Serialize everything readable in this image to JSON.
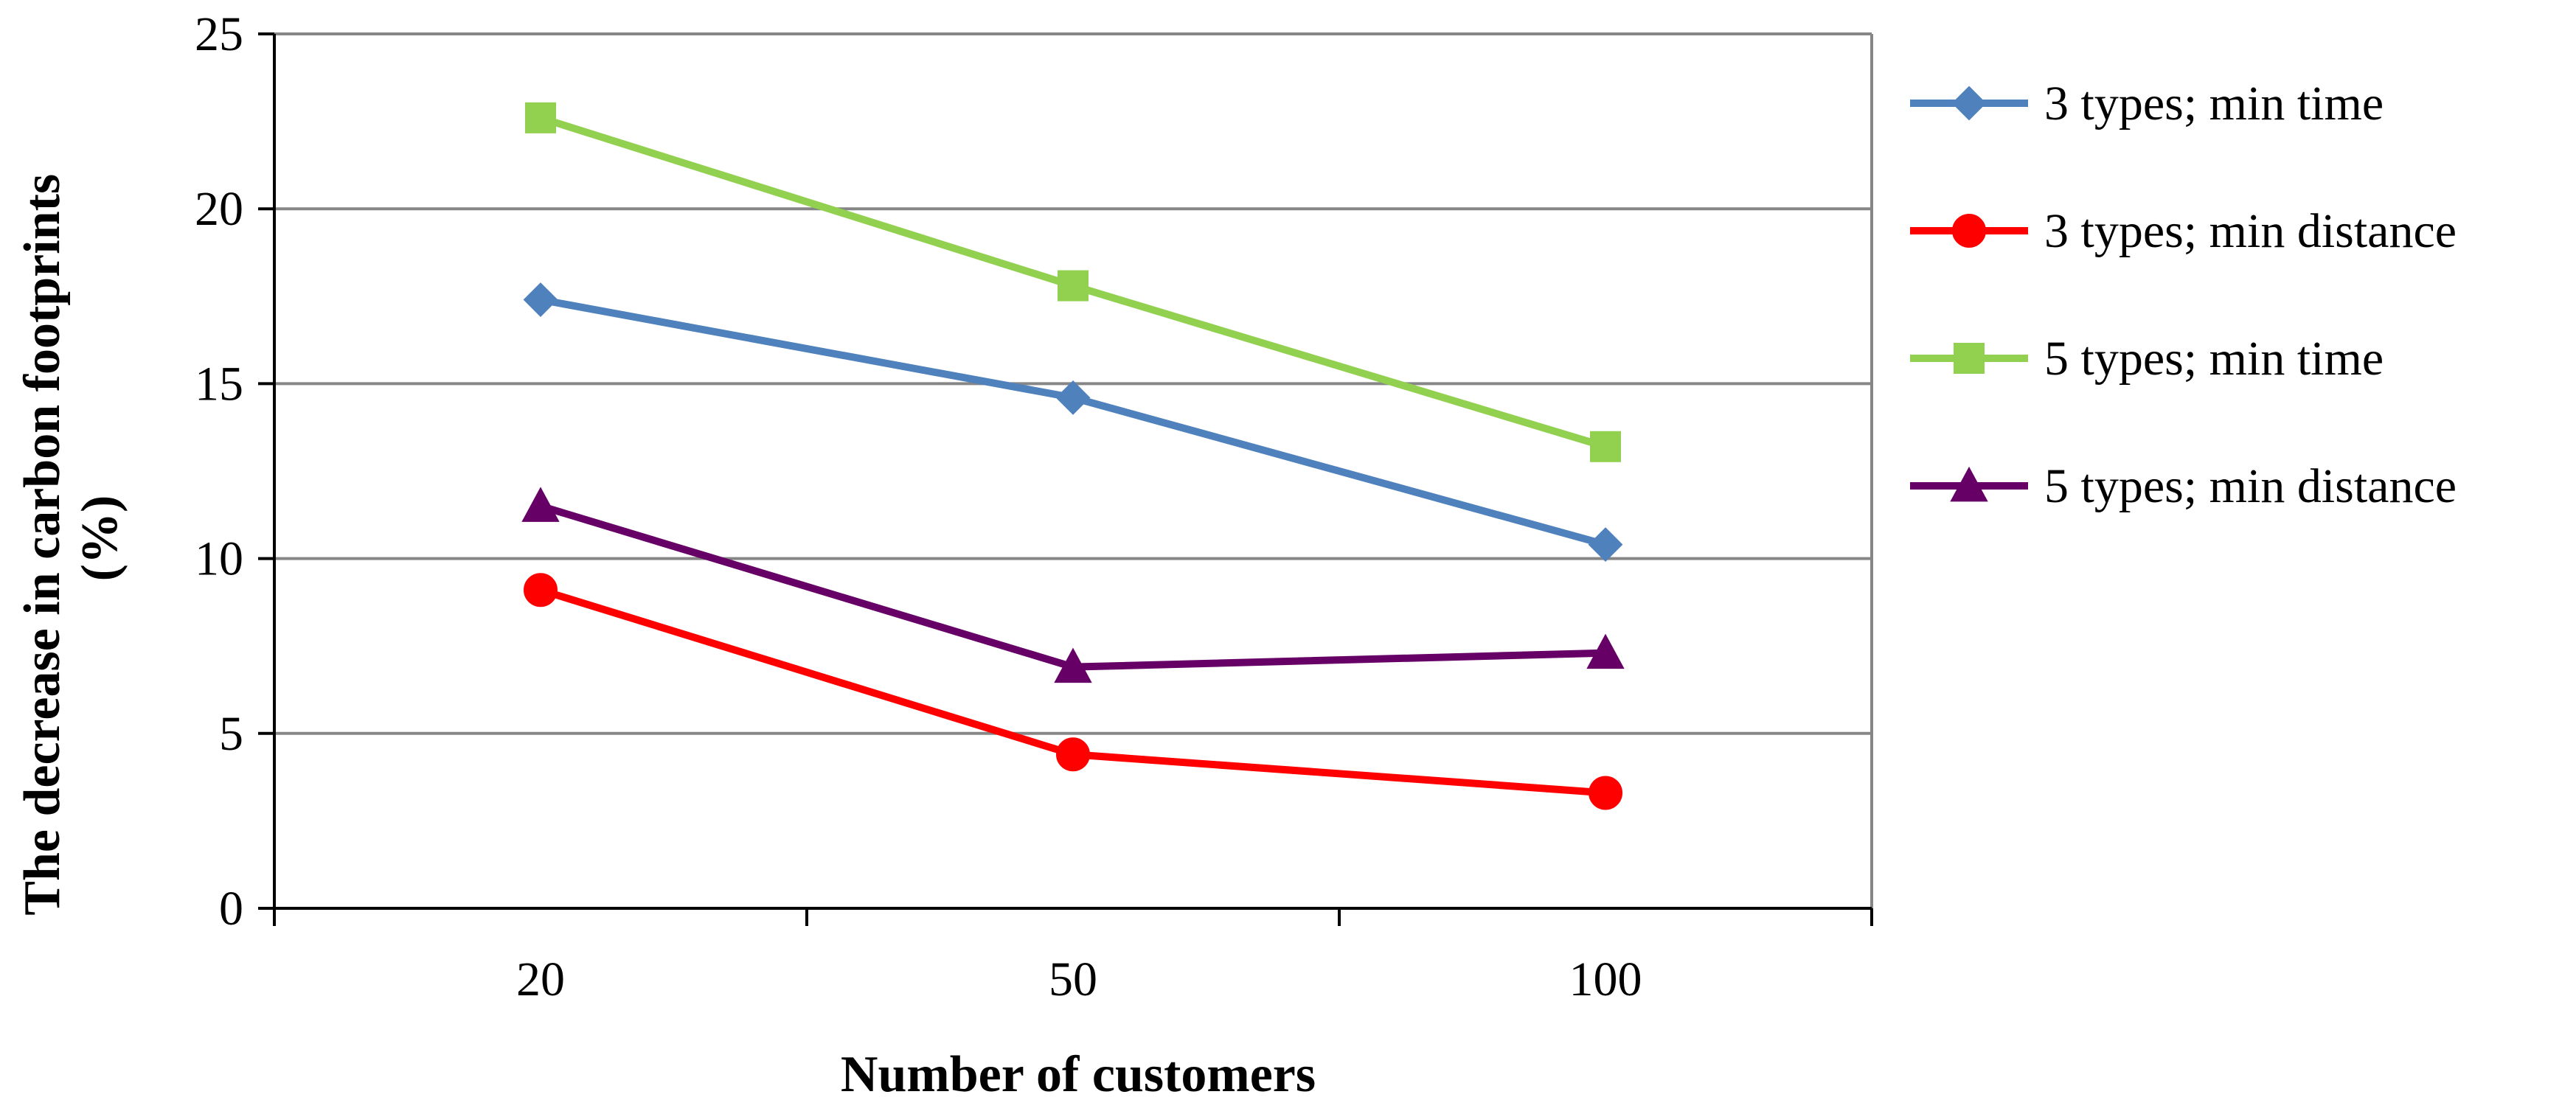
{
  "chart_data": {
    "type": "line",
    "categories": [
      "20",
      "50",
      "100"
    ],
    "series": [
      {
        "name": "3 types; min time",
        "values": [
          17.4,
          14.6,
          10.4
        ],
        "color": "#4F81BD",
        "marker": "diamond"
      },
      {
        "name": "3 types; min distance",
        "values": [
          9.1,
          4.4,
          3.3
        ],
        "color": "#FF0000",
        "marker": "circle"
      },
      {
        "name": "5 types; min time",
        "values": [
          22.6,
          17.8,
          13.2
        ],
        "color": "#92D050",
        "marker": "square"
      },
      {
        "name": "5 types; min distance",
        "values": [
          11.5,
          6.9,
          7.3
        ],
        "color": "#660066",
        "marker": "triangle"
      }
    ],
    "xlabel": "Number of customers",
    "ylabel": "The decrease in carbon footprints (%)",
    "ylabel_lines": [
      "The decrease in carbon footprints",
      "(%)"
    ],
    "ylim": [
      0,
      25
    ],
    "yticks": [
      0,
      5,
      10,
      15,
      20,
      25
    ],
    "grid": true,
    "legend_position": "right"
  }
}
